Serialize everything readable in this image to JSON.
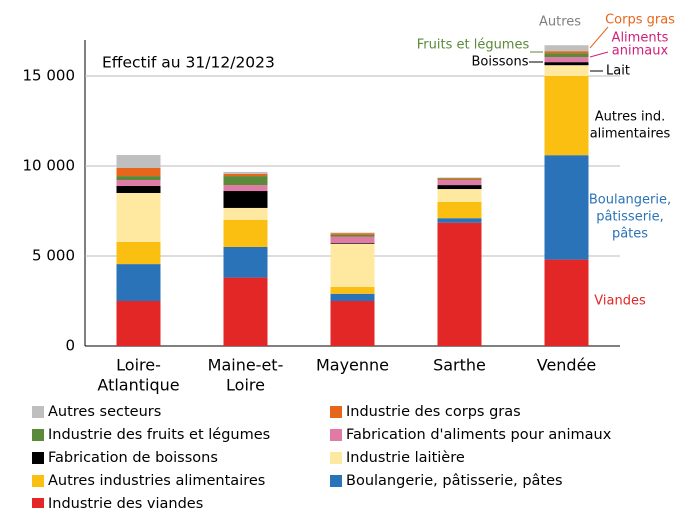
{
  "chart_data": {
    "type": "bar",
    "stacked": true,
    "title": "Effectif au 31/12/2023",
    "categories": [
      [
        "Loire-",
        "Atlantique"
      ],
      [
        "Maine-et-",
        "Loire"
      ],
      [
        "Mayenne"
      ],
      [
        "Sarthe"
      ],
      [
        "Vendée"
      ]
    ],
    "series": [
      {
        "name": "Industrie des viandes",
        "color": "#e32626",
        "values": [
          2500,
          3800,
          2500,
          6850,
          4800
        ]
      },
      {
        "name": "Boulangerie, pâtisserie, pâtes",
        "color": "#2a73b8",
        "values": [
          2050,
          1700,
          400,
          250,
          5800
        ]
      },
      {
        "name": "Autres industries alimentaires",
        "color": "#fbbf12",
        "values": [
          1230,
          1500,
          380,
          900,
          4400
        ]
      },
      {
        "name": "Industrie laitière",
        "color": "#ffe8a0",
        "values": [
          2720,
          670,
          2400,
          720,
          600
        ]
      },
      {
        "name": "Fabrication de boissons",
        "color": "#000000",
        "values": [
          390,
          940,
          40,
          220,
          170
        ]
      },
      {
        "name": "Fabrication d'aliments pour animaux",
        "color": "#e07ba8",
        "values": [
          330,
          330,
          350,
          280,
          280
        ]
      },
      {
        "name": "Industrie des fruits et légumes",
        "color": "#5a8a3a",
        "values": [
          220,
          500,
          100,
          50,
          220
        ]
      },
      {
        "name": "Industrie des corps gras",
        "color": "#e8661c",
        "values": [
          450,
          120,
          100,
          60,
          110
        ]
      },
      {
        "name": "Autres secteurs",
        "color": "#bfbfbf",
        "values": [
          720,
          110,
          30,
          30,
          330
        ]
      }
    ],
    "legend_order": [
      8,
      7,
      6,
      5,
      4,
      3,
      2,
      1,
      0
    ],
    "annotations": [
      {
        "lines": [
          "Autres"
        ],
        "color": "#808080"
      },
      {
        "lines": [
          "Corps gras"
        ],
        "color": "#e8661c"
      },
      {
        "lines": [
          "Aliments",
          "animaux"
        ],
        "color": "#d1207a"
      },
      {
        "lines": [
          "Fruits et légumes"
        ],
        "color": "#5a8a3a"
      },
      {
        "lines": [
          "Boissons"
        ],
        "color": "#000000"
      },
      {
        "lines": [
          "Lait"
        ],
        "color": "#000000"
      },
      {
        "lines": [
          "Autres ind.",
          "alimentaires"
        ],
        "color": "#000000"
      },
      {
        "lines": [
          "Boulangerie,",
          "pâtisserie,",
          "pâtes"
        ],
        "color": "#2a73b8"
      },
      {
        "lines": [
          "Viandes"
        ],
        "color": "#e32626"
      }
    ],
    "ylim": [
      0,
      17000
    ],
    "yticks": [
      0,
      {
        "value": 5000,
        "label": "5 000"
      },
      {
        "value": 10000,
        "label": "10 000"
      },
      {
        "value": 15000,
        "label": "15 000"
      }
    ],
    "grid": true
  }
}
